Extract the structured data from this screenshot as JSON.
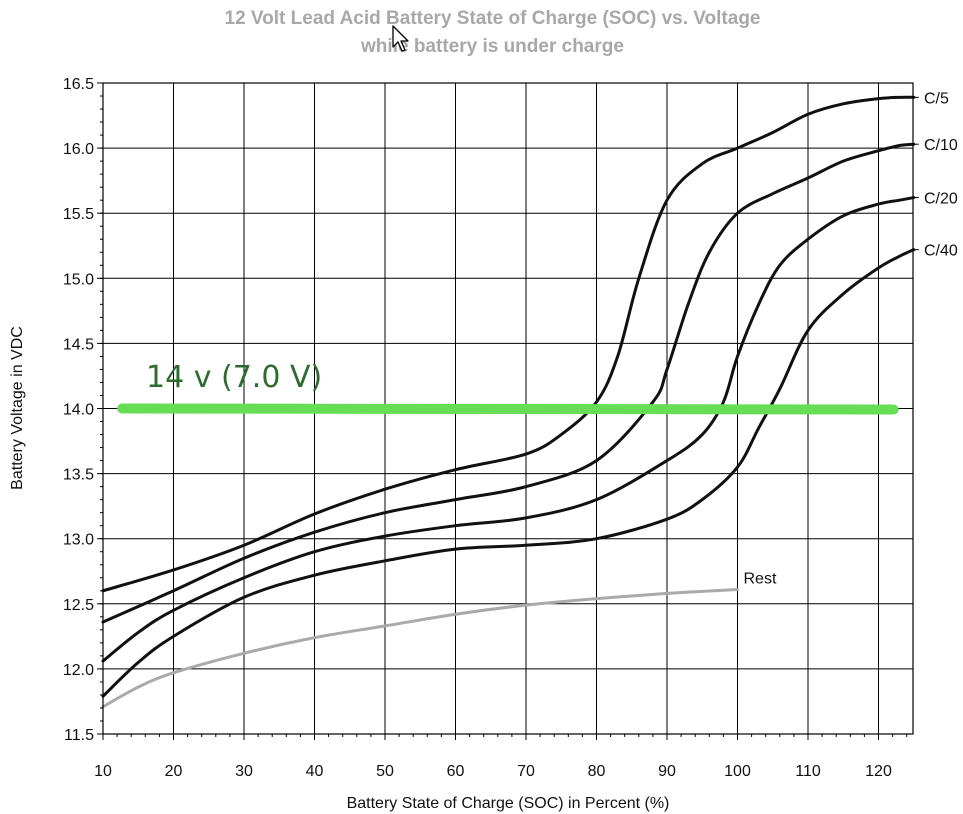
{
  "chart_data": {
    "type": "line",
    "title": "12 Volt Lead Acid Battery State of Charge (SOC) vs. Voltage",
    "subtitle": "while battery is under charge",
    "xlabel": "Battery State of Charge (SOC) in Percent (%)",
    "ylabel": "Battery Voltage in VDC",
    "xlim": [
      10,
      125
    ],
    "ylim": [
      11.5,
      16.5
    ],
    "x_ticks": [
      10,
      20,
      30,
      40,
      50,
      60,
      70,
      80,
      90,
      100,
      110,
      120
    ],
    "y_ticks": [
      "11.5",
      "12.0",
      "12.5",
      "13.0",
      "13.5",
      "14.0",
      "14.5",
      "15.0",
      "15.5",
      "16.0",
      "16.5"
    ],
    "grid": true,
    "series": [
      {
        "name": "C/5",
        "color": "#111111",
        "x": [
          10,
          20,
          30,
          40,
          50,
          60,
          70,
          75,
          80,
          83,
          86,
          90,
          95,
          100,
          105,
          110,
          115,
          120,
          123,
          125
        ],
        "y": [
          12.6,
          12.76,
          12.95,
          13.19,
          13.38,
          13.53,
          13.65,
          13.8,
          14.05,
          14.4,
          15.0,
          15.6,
          15.88,
          16.0,
          16.12,
          16.26,
          16.34,
          16.38,
          16.39,
          16.39
        ]
      },
      {
        "name": "C/10",
        "color": "#111111",
        "x": [
          10,
          20,
          30,
          40,
          50,
          60,
          70,
          80,
          88,
          90,
          93,
          96,
          100,
          105,
          110,
          115,
          120,
          123,
          125
        ],
        "y": [
          12.36,
          12.6,
          12.85,
          13.05,
          13.2,
          13.3,
          13.4,
          13.6,
          14.05,
          14.3,
          14.8,
          15.2,
          15.5,
          15.65,
          15.77,
          15.9,
          15.98,
          16.02,
          16.03
        ]
      },
      {
        "name": "C/20",
        "color": "#111111",
        "x": [
          10,
          15,
          20,
          30,
          40,
          50,
          60,
          70,
          80,
          90,
          95,
          98,
          100,
          103,
          106,
          110,
          115,
          120,
          123,
          125
        ],
        "y": [
          12.06,
          12.28,
          12.45,
          12.7,
          12.9,
          13.02,
          13.1,
          13.16,
          13.3,
          13.6,
          13.8,
          14.05,
          14.4,
          14.8,
          15.1,
          15.3,
          15.48,
          15.57,
          15.6,
          15.62
        ]
      },
      {
        "name": "C/40",
        "color": "#111111",
        "x": [
          10,
          15,
          20,
          30,
          40,
          50,
          60,
          70,
          80,
          90,
          95,
          100,
          103,
          106,
          110,
          115,
          120,
          123,
          125
        ],
        "y": [
          11.79,
          12.05,
          12.25,
          12.55,
          12.72,
          12.83,
          12.92,
          12.95,
          13.0,
          13.15,
          13.3,
          13.55,
          13.85,
          14.15,
          14.6,
          14.88,
          15.08,
          15.17,
          15.22
        ]
      },
      {
        "name": "Rest",
        "color": "#aaaaaa",
        "x": [
          10,
          15,
          20,
          30,
          40,
          50,
          60,
          70,
          80,
          90,
          100
        ],
        "y": [
          11.71,
          11.86,
          11.97,
          12.12,
          12.24,
          12.33,
          12.42,
          12.49,
          12.54,
          12.58,
          12.61
        ]
      }
    ],
    "annotation": {
      "text": "14 v (7.0 V)",
      "line_y": 14.0,
      "line_x": [
        12,
        123
      ],
      "color": "#66dd55",
      "text_color": "#2e6b2e"
    }
  }
}
